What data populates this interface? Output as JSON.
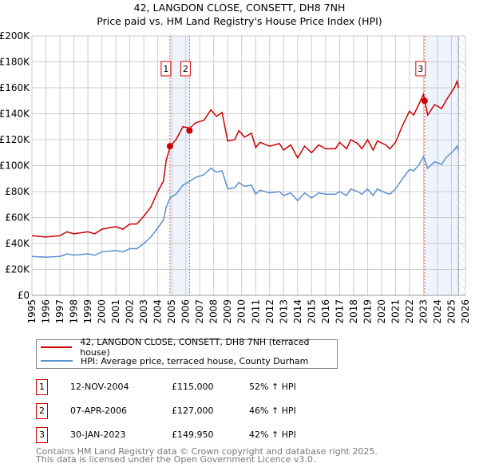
{
  "chart_data": {
    "type": "line",
    "title": "42, LANGDON CLOSE, CONSETT, DH8 7NH",
    "subtitle": "Price paid vs. HM Land Registry's House Price Index (HPI)",
    "xlim": [
      1995,
      2026
    ],
    "ylim": [
      0,
      200000
    ],
    "y_ticks": [
      {
        "v": 0,
        "label": "£0"
      },
      {
        "v": 20000,
        "label": "£20K"
      },
      {
        "v": 40000,
        "label": "£40K"
      },
      {
        "v": 60000,
        "label": "£60K"
      },
      {
        "v": 80000,
        "label": "£80K"
      },
      {
        "v": 100000,
        "label": "£100K"
      },
      {
        "v": 120000,
        "label": "£120K"
      },
      {
        "v": 140000,
        "label": "£140K"
      },
      {
        "v": 160000,
        "label": "£160K"
      },
      {
        "v": 180000,
        "label": "£180K"
      },
      {
        "v": 200000,
        "label": "£200K"
      }
    ],
    "x_ticks": [
      "1995",
      "1996",
      "1997",
      "1998",
      "1999",
      "2000",
      "2001",
      "2002",
      "2003",
      "2004",
      "2005",
      "2006",
      "2007",
      "2008",
      "2009",
      "2010",
      "2011",
      "2012",
      "2013",
      "2014",
      "2015",
      "2016",
      "2017",
      "2018",
      "2019",
      "2020",
      "2021",
      "2022",
      "2023",
      "2024",
      "2025",
      "2026"
    ],
    "grid": true,
    "x": [
      1995,
      1996,
      1997,
      1997.5,
      1998,
      1999,
      1999.5,
      2000,
      2001,
      2001.5,
      2002,
      2002.5,
      2003,
      2003.5,
      2004,
      2004.4,
      2004.6,
      2004.9,
      2005.3,
      2005.8,
      2006.3,
      2006.7,
      2007.3,
      2007.8,
      2008.2,
      2008.6,
      2009,
      2009.5,
      2009.8,
      2010.2,
      2010.7,
      2011,
      2011.3,
      2012,
      2012.7,
      2013,
      2013.5,
      2014,
      2014.5,
      2015,
      2015.5,
      2016,
      2016.7,
      2017,
      2017.5,
      2017.8,
      2018.3,
      2018.6,
      2019,
      2019.4,
      2019.7,
      2020.3,
      2020.6,
      2021,
      2021.5,
      2022,
      2022.3,
      2022.7,
      2023,
      2023.3,
      2023.8,
      2024.3,
      2024.6,
      2025.2,
      2025.4,
      2025.5
    ],
    "series": [
      {
        "name": "42, LANGDON CLOSE, CONSETT, DH8 7NH (terraced house)",
        "color": "#cc0000",
        "values": [
          46,
          45,
          46,
          49,
          47.5,
          49,
          47.5,
          51,
          53,
          51,
          55,
          55,
          61,
          68,
          80,
          88,
          104,
          115,
          120,
          130,
          129,
          133,
          135,
          143,
          138,
          141,
          119,
          120,
          127,
          122,
          125,
          114,
          118,
          115,
          117,
          112,
          116,
          106,
          115,
          110,
          116,
          113,
          113,
          118,
          113,
          120,
          117,
          113,
          120,
          112,
          119,
          116,
          113,
          118,
          131,
          142,
          139,
          148,
          155,
          139,
          147,
          144,
          150,
          160,
          165,
          160
        ]
      },
      {
        "name": "HPI: Average price, terraced house, County Durham",
        "color": "#5b8fd0",
        "values": [
          30,
          29.5,
          30,
          32,
          31,
          32,
          31,
          33.5,
          34.5,
          33.5,
          36,
          36,
          40,
          45,
          52,
          58,
          68,
          75.5,
          78,
          85,
          88,
          91,
          93,
          98,
          95,
          96,
          82,
          83,
          87,
          84,
          85,
          78,
          81,
          79,
          80,
          77,
          79,
          73,
          79,
          75,
          79,
          78,
          78,
          80,
          77,
          82,
          80,
          78,
          82,
          77,
          82,
          79,
          78,
          82,
          90,
          97,
          96,
          101,
          107,
          98,
          103,
          101,
          106,
          112,
          115,
          112
        ]
      }
    ],
    "value_unit": "£K",
    "sales": [
      {
        "id": "1",
        "x": 2004.87,
        "price": 115000,
        "date": "12-NOV-2004",
        "price_label": "£115,000",
        "hpi": "52% ↑ HPI"
      },
      {
        "id": "2",
        "x": 2006.27,
        "price": 127000,
        "date": "07-APR-2006",
        "price_label": "£127,000",
        "hpi": "46% ↑ HPI"
      },
      {
        "id": "3",
        "x": 2023.08,
        "price": 149950,
        "date": "30-JAN-2023",
        "price_label": "£149,950",
        "hpi": "42% ↑ HPI"
      }
    ],
    "shaded_ranges": [
      [
        2004.87,
        2006.27
      ],
      [
        2023.08,
        2025.5
      ]
    ],
    "forecast_start": 2025.5,
    "legend_placement": "below"
  },
  "footer": [
    "Contains HM Land Registry data © Crown copyright and database right 2025.",
    "This data is licensed under the Open Government Licence v3.0."
  ]
}
